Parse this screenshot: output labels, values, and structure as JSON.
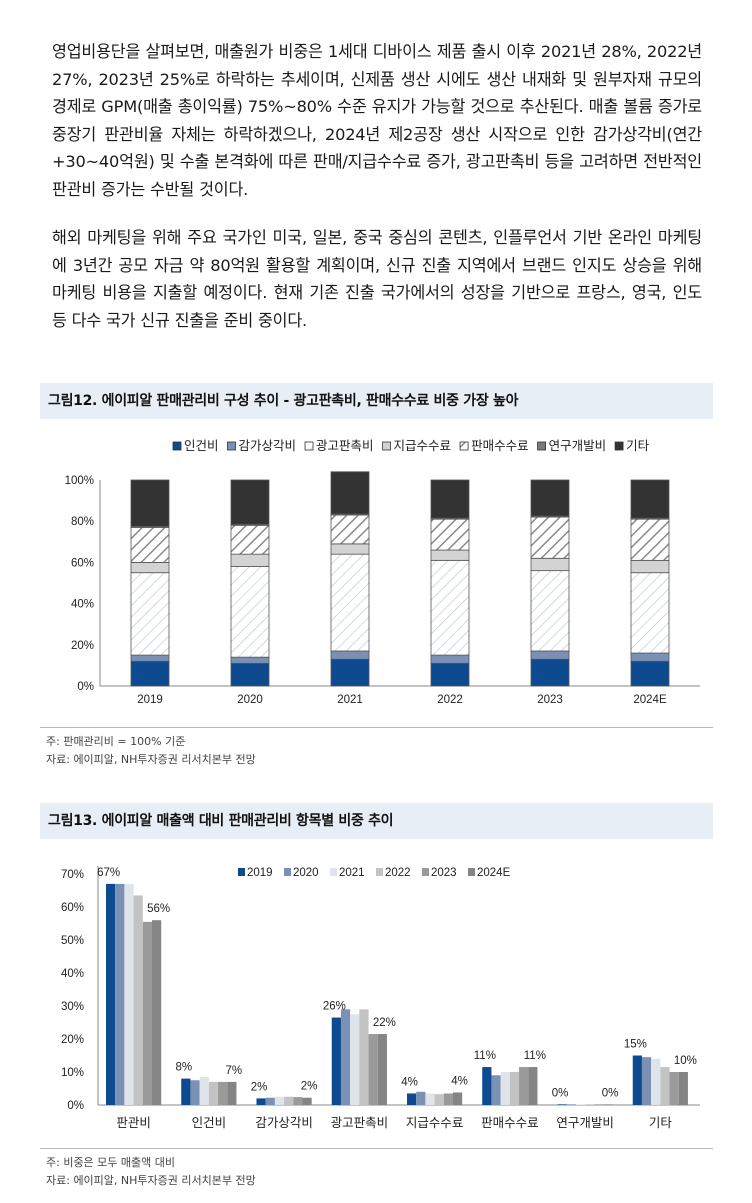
{
  "paragraphs": [
    "영업비용단을 살펴보면, 매출원가 비중은 1세대 디바이스 제품 출시 이후 2021년 28%, 2022년 27%, 2023년 25%로 하락하는 추세이며, 신제품 생산 시에도 생산 내재화 및 원부자재 규모의 경제로 GPM(매출 총이익률) 75%~80% 수준 유지가 가능할 것으로 추산된다. 매출 볼륨 증가로 중장기 판관비율 자체는 하락하겠으나, 2024년 제2공장 생산 시작으로 인한 감가상각비(연간 +30~40억원) 및 수출 본격화에 따른 판매/지급수수료 증가, 광고판촉비 등을 고려하면 전반적인 판관비 증가는 수반될 것이다.",
    "해외 마케팅을 위해 주요 국가인 미국, 일본, 중국 중심의 콘텐츠, 인플루언서 기반 온라인 마케팅에 3년간 공모 자금 약 80억원 활용할 계획이며, 신규 진출 지역에서 브랜드 인지도 상승을 위해 마케팅 비용을 지출할 예정이다. 현재 기존 진출 국가에서의 성장을 기반으로 프랑스, 영국, 인도 등 다수 국가 신규 진출을 준비 중이다."
  ],
  "figure12": {
    "title": "그림12. 에이피알 판매관리비 구성 추이 - 광고판촉비, 판매수수료 비중 가장 높아",
    "note": "주: 판매관리비 = 100% 기준",
    "source": "자료: 에이피알, NH투자증권 리서치본부 전망"
  },
  "figure13": {
    "title": "그림13. 에이피알 매출액 대비 판매관리비 항목별 비중 추이",
    "note": "주: 비중은 모두 매출액 대비",
    "source": "자료: 에이피알, NH투자증권 리서치본부 전망"
  },
  "chart_data": [
    {
      "type": "bar",
      "stacked": true,
      "categories": [
        "2019",
        "2020",
        "2021",
        "2022",
        "2023",
        "2024E"
      ],
      "ylim": [
        0,
        100
      ],
      "yticks": [
        "0%",
        "20%",
        "40%",
        "60%",
        "80%",
        "100%"
      ],
      "legend_position": "top",
      "series": [
        {
          "name": "인건비",
          "color": "#0d4a8f",
          "pattern": "solid",
          "values": [
            12,
            11,
            13,
            11,
            13,
            12
          ]
        },
        {
          "name": "감가상각비",
          "color": "#7b90b5",
          "pattern": "solid",
          "values": [
            3,
            3,
            4,
            4,
            4,
            4
          ]
        },
        {
          "name": "광고판촉비",
          "color": "#ffffff",
          "pattern": "light-hatch",
          "values": [
            40,
            44,
            47,
            46,
            39,
            39
          ]
        },
        {
          "name": "지급수수료",
          "color": "#d3d3d3",
          "pattern": "solid",
          "values": [
            5,
            6,
            5,
            5,
            6,
            6
          ]
        },
        {
          "name": "판매수수료",
          "color": "#ffffff",
          "pattern": "dark-hatch",
          "values": [
            17,
            14,
            14,
            15,
            20,
            20
          ]
        },
        {
          "name": "연구개발비",
          "color": "#7a7a7a",
          "pattern": "solid",
          "values": [
            0.5,
            0.5,
            0.5,
            0.5,
            0.5,
            0.5
          ]
        },
        {
          "name": "기타",
          "color": "#333333",
          "pattern": "solid",
          "values": [
            22.5,
            21.5,
            20.5,
            18.5,
            17.5,
            18.5
          ]
        }
      ]
    },
    {
      "type": "bar",
      "categories": [
        "판관비",
        "인건비",
        "감가상각비",
        "광고판촉비",
        "지급수수료",
        "판매수수료",
        "연구개발비",
        "기타"
      ],
      "ylim": [
        0,
        70
      ],
      "yticks": [
        "0%",
        "10%",
        "20%",
        "30%",
        "40%",
        "50%",
        "60%",
        "70%"
      ],
      "legend_position": "top-right",
      "series": [
        {
          "name": "2019",
          "color": "#0d4a8f",
          "values": [
            67,
            8,
            2,
            26.5,
            3.5,
            11.5,
            0.2,
            15
          ]
        },
        {
          "name": "2020",
          "color": "#7b90b5",
          "values": [
            67,
            7.5,
            2.2,
            29,
            4,
            9,
            0.2,
            14.5
          ]
        },
        {
          "name": "2021",
          "color": "#dfe3ea",
          "values": [
            67,
            8.5,
            2.5,
            27.5,
            3.5,
            10,
            0.2,
            14
          ]
        },
        {
          "name": "2022",
          "color": "#c3c3c3",
          "values": [
            63.5,
            7,
            2.5,
            29,
            3.3,
            10,
            0.2,
            11.5
          ]
        },
        {
          "name": "2023",
          "color": "#9a9a9a",
          "values": [
            55.5,
            7,
            2.4,
            21.5,
            3.5,
            11.5,
            0.2,
            10
          ]
        },
        {
          "name": "2024E",
          "color": "#858585",
          "values": [
            56,
            7,
            2.2,
            21.5,
            3.8,
            11.5,
            0.2,
            10
          ]
        }
      ],
      "data_labels": [
        {
          "category": "판관비",
          "labels": [
            "67%",
            "56%"
          ]
        },
        {
          "category": "인건비",
          "labels": [
            "8%",
            "7%"
          ]
        },
        {
          "category": "감가상각비",
          "labels": [
            "2%",
            "2%"
          ]
        },
        {
          "category": "광고판촉비",
          "labels": [
            "26%",
            "22%"
          ]
        },
        {
          "category": "지급수수료",
          "labels": [
            "4%",
            "4%"
          ]
        },
        {
          "category": "판매수수료",
          "labels": [
            "11%",
            "11%"
          ]
        },
        {
          "category": "연구개발비",
          "labels": [
            "0%",
            "0%"
          ]
        },
        {
          "category": "기타",
          "labels": [
            "15%",
            "10%"
          ]
        }
      ]
    }
  ]
}
